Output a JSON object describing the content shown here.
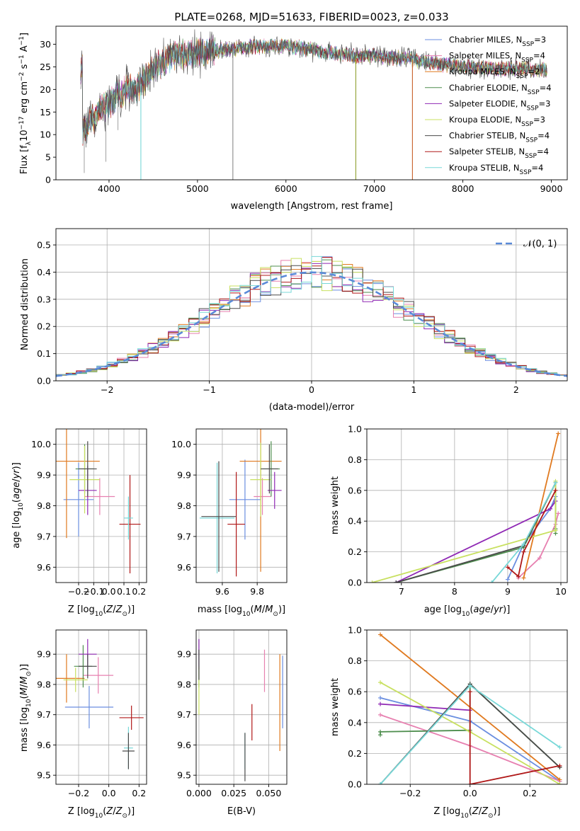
{
  "title": "PLATE=0268, MJD=51633, FIBERID=0023, z=0.033",
  "palette": [
    "#6a8ee0",
    "#e780b0",
    "#e07a20",
    "#4e8e4e",
    "#8f28b4",
    "#c8e060",
    "#4a4a4a",
    "#b01818",
    "#78d8d8"
  ],
  "chart_data": [
    {
      "id": "spectrum",
      "type": "line",
      "xlabel": "wavelength [Angstrom, rest frame]",
      "ylabel": "Flux [f_λ10^-17 erg cm^-2 s^-1 A^-1]",
      "xlim": [
        3400,
        9180
      ],
      "ylim": [
        0,
        34
      ],
      "xticks": [
        4000,
        5000,
        6000,
        7000,
        8000,
        9000
      ],
      "yticks": [
        0,
        5,
        10,
        15,
        20,
        25,
        30
      ],
      "grid": false,
      "legend": "upper right",
      "series": [
        {
          "name": "Chabrier MILES, N_SSP=3",
          "sub": "SSP",
          "sup": "",
          "main": "Chabrier MILES, N",
          "tail": "=3",
          "color": "#6a8ee0"
        },
        {
          "name": "Salpeter MILES, N_SSP=4",
          "main": "Salpeter MILES, N",
          "sub": "SSP",
          "tail": "=4",
          "color": "#e780b0"
        },
        {
          "name": "Kroupa MILES, N_SSP=2",
          "main": "Kroupa MILES, N",
          "sub": "SSP",
          "tail": "=2",
          "color": "#e07a20"
        },
        {
          "name": "Chabrier ELODIE, N_SSP=4",
          "main": "Chabrier ELODIE, N",
          "sub": "SSP",
          "tail": "=4",
          "color": "#4e8e4e"
        },
        {
          "name": "Salpeter ELODIE, N_SSP=3",
          "main": "Salpeter ELODIE, N",
          "sub": "SSP",
          "tail": "=3",
          "color": "#8f28b4"
        },
        {
          "name": "Kroupa ELODIE, N_SSP=3",
          "main": "Kroupa ELODIE, N",
          "sub": "SSP",
          "tail": "=3",
          "color": "#c8e060"
        },
        {
          "name": "Chabrier STELIB, N_SSP=4",
          "main": "Chabrier STELIB, N",
          "sub": "SSP",
          "tail": "=4",
          "color": "#4a4a4a"
        },
        {
          "name": "Salpeter STELIB, N_SSP=4",
          "main": "Salpeter STELIB, N",
          "sub": "SSP",
          "tail": "=4",
          "color": "#b01818"
        },
        {
          "name": "Kroupa STELIB, N_SSP=4",
          "main": "Kroupa STELIB, N",
          "sub": "SSP",
          "tail": "=4",
          "color": "#78d8d8"
        }
      ],
      "continuum": [
        [
          3700,
          11
        ],
        [
          3800,
          13
        ],
        [
          3900,
          15
        ],
        [
          4000,
          17
        ],
        [
          4100,
          19
        ],
        [
          4200,
          20
        ],
        [
          4300,
          20
        ],
        [
          4400,
          22
        ],
        [
          4500,
          25
        ],
        [
          4600,
          26
        ],
        [
          4700,
          27
        ],
        [
          4800,
          27.5
        ],
        [
          4900,
          27.5
        ],
        [
          5000,
          28
        ],
        [
          5200,
          28.5
        ],
        [
          5400,
          29
        ],
        [
          5600,
          29.5
        ],
        [
          5800,
          29.5
        ],
        [
          6000,
          29.5
        ],
        [
          6200,
          29
        ],
        [
          6400,
          28.5
        ],
        [
          6600,
          28
        ],
        [
          6800,
          27.5
        ],
        [
          7000,
          27.5
        ],
        [
          7200,
          27
        ],
        [
          7400,
          26.8
        ],
        [
          7600,
          26
        ],
        [
          7800,
          25.5
        ],
        [
          8000,
          25
        ],
        [
          8200,
          24.8
        ],
        [
          8400,
          24.5
        ],
        [
          8600,
          24.5
        ],
        [
          8800,
          24.5
        ],
        [
          8950,
          24.5
        ]
      ],
      "dropouts": [
        {
          "x": 4360,
          "color": "#78d8d8"
        },
        {
          "x": 5400,
          "color": "#8a8a8a"
        },
        {
          "x": 6790,
          "color": "#8fa030"
        },
        {
          "x": 7430,
          "color": "#c8602a"
        }
      ]
    },
    {
      "id": "residuals",
      "type": "step",
      "xlabel": "(data-model)/error",
      "ylabel": "Normed distribution",
      "xlim": [
        -2.5,
        2.5
      ],
      "ylim": [
        0,
        0.56
      ],
      "xticks": [
        -2,
        -1,
        0,
        1,
        2
      ],
      "yticks": [
        0.0,
        0.1,
        0.2,
        0.3,
        0.4,
        0.5
      ],
      "grid": true,
      "legend": "upper right",
      "legend_label": "𝒩(0, 1)",
      "bin_width": 0.1,
      "reference": {
        "mean": 0,
        "sigma": 1,
        "color": "#5a8ad8"
      }
    },
    {
      "id": "age_vs_Z",
      "type": "errorbar",
      "xlabel": "Z [log10(Z/Z⊙)]",
      "ylabel": "age [log10(age/yr)]",
      "xlim": [
        -0.35,
        0.25
      ],
      "ylim": [
        9.55,
        10.05
      ],
      "xticks": [
        -0.2,
        -0.1,
        0.0,
        0.1,
        0.2
      ],
      "yticks": [
        9.6,
        9.7,
        9.8,
        9.9,
        10.0
      ],
      "points": [
        {
          "x": -0.2,
          "y": 9.82,
          "xerr": 0.1,
          "yerr": 0.12,
          "color": "#6a8ee0"
        },
        {
          "x": -0.06,
          "y": 9.83,
          "xerr": 0.1,
          "yerr": 0.06,
          "color": "#e780b0"
        },
        {
          "x": -0.28,
          "y": 9.945,
          "xerr": 0.22,
          "yerr": 0.25,
          "color": "#e07a20"
        },
        {
          "x": -0.16,
          "y": 9.92,
          "xerr": 0.06,
          "yerr": 0.08,
          "color": "#4e8e4e"
        },
        {
          "x": -0.14,
          "y": 9.85,
          "xerr": 0.06,
          "yerr": 0.08,
          "color": "#8f28b4"
        },
        {
          "x": -0.16,
          "y": 9.885,
          "xerr": 0.1,
          "yerr": 0.11,
          "color": "#c8e060"
        },
        {
          "x": -0.14,
          "y": 9.92,
          "xerr": 0.06,
          "yerr": 0.09,
          "color": "#4a4a4a"
        },
        {
          "x": 0.14,
          "y": 9.74,
          "xerr": 0.07,
          "yerr": 0.16,
          "color": "#b01818"
        },
        {
          "x": 0.13,
          "y": 9.76,
          "xerr": 0.03,
          "yerr": 0.07,
          "color": "#78d8d8"
        }
      ]
    },
    {
      "id": "age_vs_mass",
      "type": "errorbar",
      "xlabel": "mass [log10(M/M⊙)]",
      "ylabel": "",
      "xlim": [
        9.45,
        9.97
      ],
      "ylim": [
        9.55,
        10.05
      ],
      "xticks": [
        9.6,
        9.8
      ],
      "yticks": [
        9.6,
        9.7,
        9.8,
        9.9,
        10.0
      ],
      "points": [
        {
          "x": 9.73,
          "y": 9.82,
          "xerr": 0.09,
          "yerr": 0.13,
          "color": "#6a8ee0"
        },
        {
          "x": 9.83,
          "y": 9.83,
          "xerr": 0.05,
          "yerr": 0.06,
          "color": "#e780b0"
        },
        {
          "x": 9.82,
          "y": 9.945,
          "xerr": 0.12,
          "yerr": 0.36,
          "color": "#e07a20"
        },
        {
          "x": 9.88,
          "y": 9.92,
          "xerr": 0.05,
          "yerr": 0.09,
          "color": "#4e8e4e"
        },
        {
          "x": 9.9,
          "y": 9.85,
          "xerr": 0.04,
          "yerr": 0.06,
          "color": "#8f28b4"
        },
        {
          "x": 9.82,
          "y": 9.885,
          "xerr": 0.06,
          "yerr": 0.12,
          "color": "#c8e060"
        },
        {
          "x": 9.87,
          "y": 9.92,
          "xerr": 0.05,
          "yerr": 0.08,
          "color": "#4a4a4a"
        },
        {
          "x": 9.68,
          "y": 9.74,
          "xerr": 0.05,
          "yerr": 0.17,
          "color": "#b01818"
        },
        {
          "x": 9.57,
          "y": 9.76,
          "xerr": 0.1,
          "yerr": 0.18,
          "color": "#78d8d8"
        },
        {
          "x": 9.58,
          "y": 9.765,
          "xerr": 0.1,
          "yerr": 0.18,
          "color": "#4a4a4a"
        }
      ]
    },
    {
      "id": "weight_vs_age",
      "type": "line",
      "xlabel": "age [log10(age/yr)]",
      "ylabel": "mass weight",
      "xlim": [
        6.35,
        10.12
      ],
      "ylim": [
        0,
        1.0
      ],
      "xticks": [
        7,
        8,
        9,
        10
      ],
      "yticks": [
        0.0,
        0.2,
        0.4,
        0.6,
        0.8,
        1.0
      ],
      "series": [
        {
          "color": "#6a8ee0",
          "x": [
            9.0,
            9.3,
            9.8,
            9.9
          ],
          "y": [
            0.02,
            0.25,
            0.48,
            0.56
          ]
        },
        {
          "color": "#e780b0",
          "x": [
            9.2,
            9.6,
            9.9,
            9.95
          ],
          "y": [
            0.03,
            0.16,
            0.38,
            0.45
          ]
        },
        {
          "color": "#e07a20",
          "x": [
            9.3,
            9.95
          ],
          "y": [
            0.03,
            0.97
          ]
        },
        {
          "color": "#4e8e4e",
          "x": [
            6.9,
            9.3,
            9.9,
            9.9,
            9.9
          ],
          "y": [
            0.0,
            0.23,
            0.65,
            0.35,
            0.32
          ]
        },
        {
          "color": "#8f28b4",
          "x": [
            6.9,
            9.8,
            9.9
          ],
          "y": [
            0.0,
            0.48,
            0.53
          ]
        },
        {
          "color": "#c8e060",
          "x": [
            6.45,
            9.9,
            9.9
          ],
          "y": [
            0.0,
            0.34,
            0.66
          ]
        },
        {
          "color": "#4a4a4a",
          "x": [
            6.9,
            9.3,
            9.9
          ],
          "y": [
            0.0,
            0.24,
            0.65
          ]
        },
        {
          "color": "#b01818",
          "x": [
            9.0,
            9.2,
            9.3,
            9.9
          ],
          "y": [
            0.1,
            0.04,
            0.2,
            0.6
          ]
        },
        {
          "color": "#78d8d8",
          "x": [
            8.7,
            9.3,
            9.9
          ],
          "y": [
            0.0,
            0.25,
            0.65
          ]
        }
      ]
    },
    {
      "id": "mass_vs_Z",
      "type": "errorbar",
      "xlabel": "Z [log10(Z/Z⊙)]",
      "ylabel": "mass [log10(M/M⊙)]",
      "xlim": [
        -0.35,
        0.25
      ],
      "ylim": [
        9.47,
        9.98
      ],
      "xticks": [
        -0.2,
        0.0,
        0.2
      ],
      "yticks": [
        9.5,
        9.6,
        9.7,
        9.8,
        9.9
      ],
      "points": [
        {
          "x": -0.13,
          "y": 9.725,
          "xerr": 0.16,
          "yerr": 0.07,
          "color": "#6a8ee0"
        },
        {
          "x": -0.07,
          "y": 9.83,
          "xerr": 0.1,
          "yerr": 0.06,
          "color": "#e780b0"
        },
        {
          "x": -0.28,
          "y": 9.82,
          "xerr": 0.12,
          "yerr": 0.08,
          "color": "#e07a20"
        },
        {
          "x": -0.17,
          "y": 9.86,
          "xerr": 0.06,
          "yerr": 0.07,
          "color": "#4e8e4e"
        },
        {
          "x": -0.14,
          "y": 9.9,
          "xerr": 0.06,
          "yerr": 0.05,
          "color": "#8f28b4"
        },
        {
          "x": -0.22,
          "y": 9.815,
          "xerr": 0.08,
          "yerr": 0.04,
          "color": "#c8e060"
        },
        {
          "x": -0.14,
          "y": 9.86,
          "xerr": 0.06,
          "yerr": 0.04,
          "color": "#4a4a4a"
        },
        {
          "x": 0.15,
          "y": 9.69,
          "xerr": 0.08,
          "yerr": 0.04,
          "color": "#b01818"
        },
        {
          "x": 0.13,
          "y": 9.59,
          "xerr": 0.03,
          "yerr": 0.07,
          "color": "#78d8d8"
        },
        {
          "x": 0.13,
          "y": 9.58,
          "xerr": 0.04,
          "yerr": 0.06,
          "color": "#4a4a4a"
        }
      ]
    },
    {
      "id": "mass_vs_ebv",
      "type": "errorbar",
      "xlabel": "E(B-V)",
      "ylabel": "",
      "xlim": [
        -0.002,
        0.063
      ],
      "ylim": [
        9.47,
        9.98
      ],
      "xticks": [
        0.0,
        0.025,
        0.05
      ],
      "yticks": [
        9.5,
        9.6,
        9.7,
        9.8,
        9.9
      ],
      "xticklabels": [
        "0.000",
        "0.025",
        "0.050"
      ],
      "points": [
        {
          "x": 0.06,
          "y": 9.775,
          "xerr": 0,
          "yerr": 0.12,
          "color": "#6a8ee0"
        },
        {
          "x": 0.047,
          "y": 9.845,
          "xerr": 0,
          "yerr": 0.07,
          "color": "#e780b0"
        },
        {
          "x": 0.058,
          "y": 9.74,
          "xerr": 0,
          "yerr": 0.16,
          "color": "#e07a20"
        },
        {
          "x": 0.0,
          "y": 9.87,
          "xerr": 0,
          "yerr": 0.08,
          "color": "#4e8e4e"
        },
        {
          "x": 0.0,
          "y": 9.9,
          "xerr": 0,
          "yerr": 0.05,
          "color": "#8f28b4"
        },
        {
          "x": 0.0,
          "y": 9.78,
          "xerr": 0,
          "yerr": 0.08,
          "color": "#c8e060"
        },
        {
          "x": 0.0,
          "y": 9.865,
          "xerr": 0,
          "yerr": 0.05,
          "color": "#4a4a4a"
        },
        {
          "x": 0.038,
          "y": 9.675,
          "xerr": 0,
          "yerr": 0.06,
          "color": "#b01818"
        },
        {
          "x": 0.033,
          "y": 9.58,
          "xerr": 0,
          "yerr": 0.06,
          "color": "#78d8d8"
        },
        {
          "x": 0.033,
          "y": 9.56,
          "xerr": 0,
          "yerr": 0.08,
          "color": "#4a4a4a"
        }
      ]
    },
    {
      "id": "weight_vs_Z",
      "type": "line",
      "xlabel": "Z [log10(Z/Z⊙)]",
      "ylabel": "mass weight",
      "xlim": [
        -0.345,
        0.325
      ],
      "ylim": [
        0,
        1.0
      ],
      "xticks": [
        -0.2,
        0.0,
        0.2
      ],
      "yticks": [
        0.0,
        0.2,
        0.4,
        0.6,
        0.8,
        1.0
      ],
      "series": [
        {
          "color": "#6a8ee0",
          "x": [
            -0.3,
            0.0,
            0.3
          ],
          "y": [
            0.56,
            0.41,
            0.02
          ]
        },
        {
          "color": "#e780b0",
          "x": [
            -0.3,
            0.0,
            0.3
          ],
          "y": [
            0.45,
            0.25,
            0.02
          ]
        },
        {
          "color": "#e07a20",
          "x": [
            -0.3,
            0.3
          ],
          "y": [
            0.97,
            0.03
          ]
        },
        {
          "color": "#4e8e4e",
          "x": [
            -0.3,
            -0.3,
            0.0,
            0.0,
            0.3
          ],
          "y": [
            0.32,
            0.34,
            0.35,
            0.65,
            0.11
          ]
        },
        {
          "color": "#8f28b4",
          "x": [
            -0.3,
            0.0
          ],
          "y": [
            0.52,
            0.48
          ]
        },
        {
          "color": "#c8e060",
          "x": [
            -0.3,
            0.0,
            0.3
          ],
          "y": [
            0.66,
            0.34,
            0.0
          ]
        },
        {
          "color": "#4a4a4a",
          "x": [
            -0.3,
            0.0,
            0.3
          ],
          "y": [
            0.0,
            0.65,
            0.11
          ]
        },
        {
          "color": "#b01818",
          "x": [
            0.0,
            0.0,
            0.3
          ],
          "y": [
            0.6,
            0.0,
            0.12
          ]
        },
        {
          "color": "#78d8d8",
          "x": [
            -0.3,
            0.0,
            0.3
          ],
          "y": [
            0.0,
            0.64,
            0.24
          ]
        }
      ]
    }
  ]
}
